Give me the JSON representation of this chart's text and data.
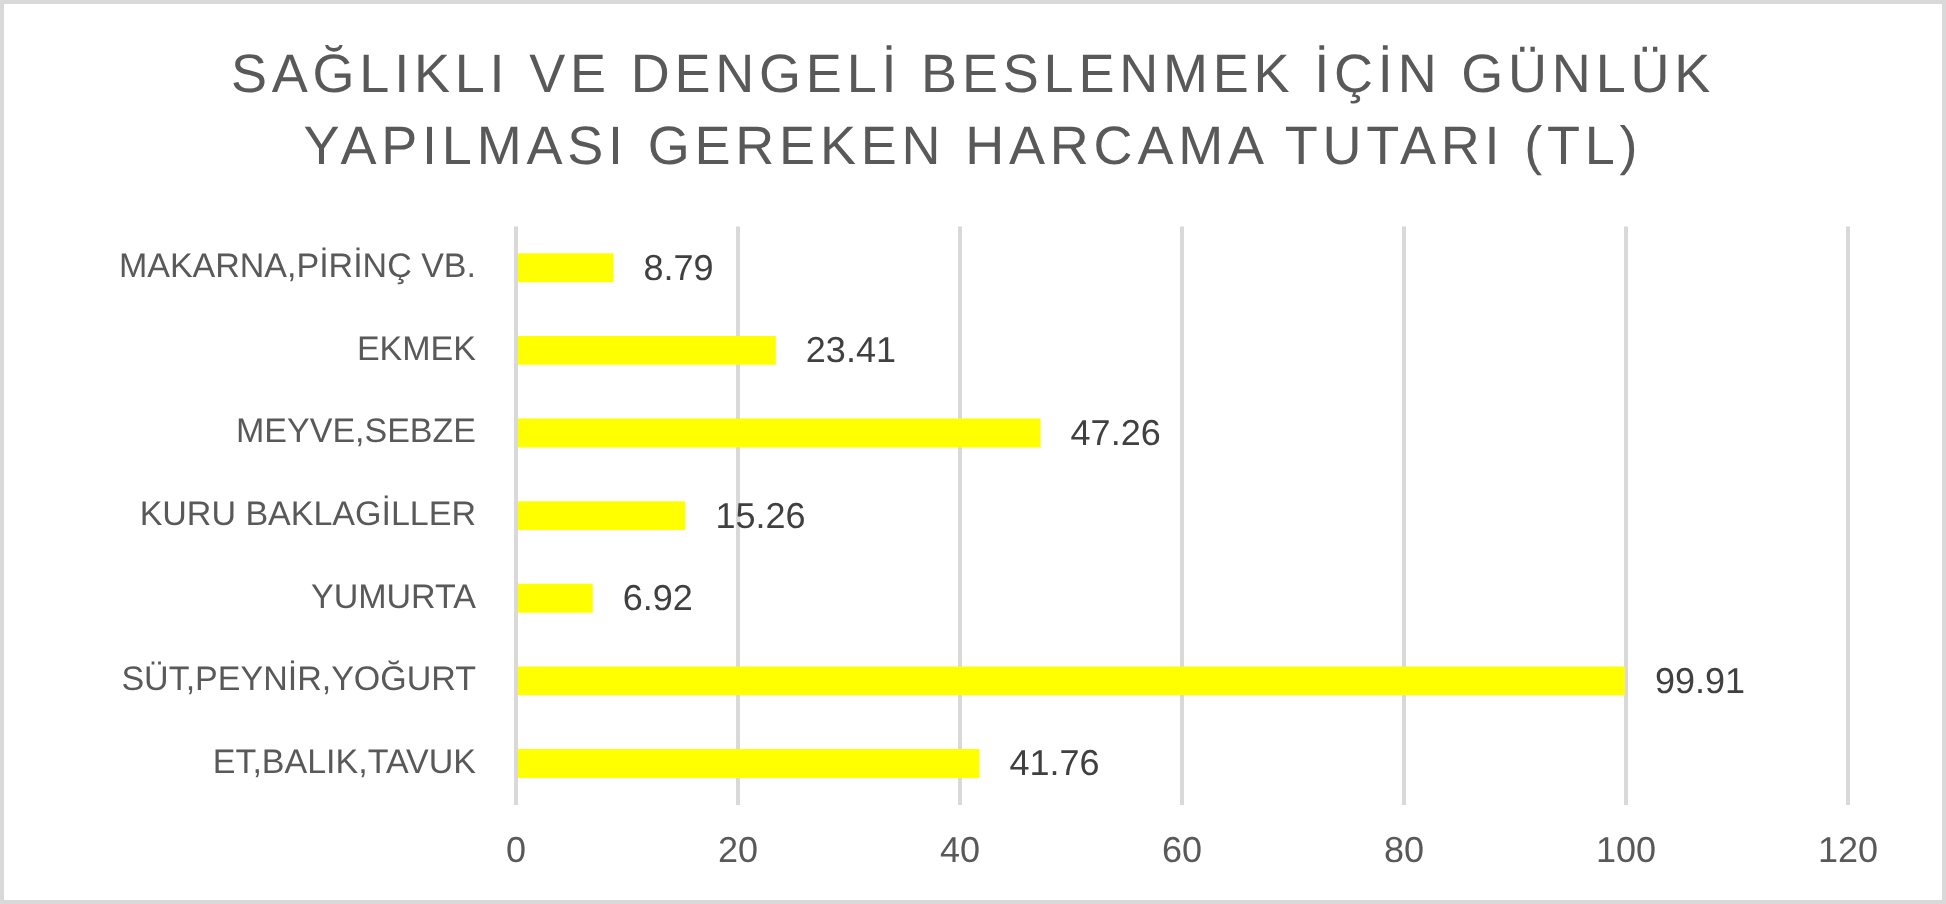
{
  "chart_data": {
    "type": "bar",
    "orientation": "horizontal",
    "title": "SAĞLIKLI VE DENGELİ BESLENMEK İÇİN GÜNLÜK YAPILMASI GEREKEN HARCAMA TUTARI (TL)",
    "categories": [
      "MAKARNA,PİRİNÇ VB.",
      "EKMEK",
      "MEYVE,SEBZE",
      "KURU BAKLAGİLLER",
      "YUMURTA",
      "SÜT,PEYNİR,YOĞURT",
      "ET,BALIK,TAVUK"
    ],
    "values": [
      8.79,
      23.41,
      47.26,
      15.26,
      6.92,
      99.91,
      41.76
    ],
    "color": "#ffff00",
    "xlim": [
      0,
      120
    ],
    "xticks": [
      0,
      20,
      40,
      60,
      80,
      100,
      120
    ],
    "grid": "x",
    "data_labels": true
  }
}
